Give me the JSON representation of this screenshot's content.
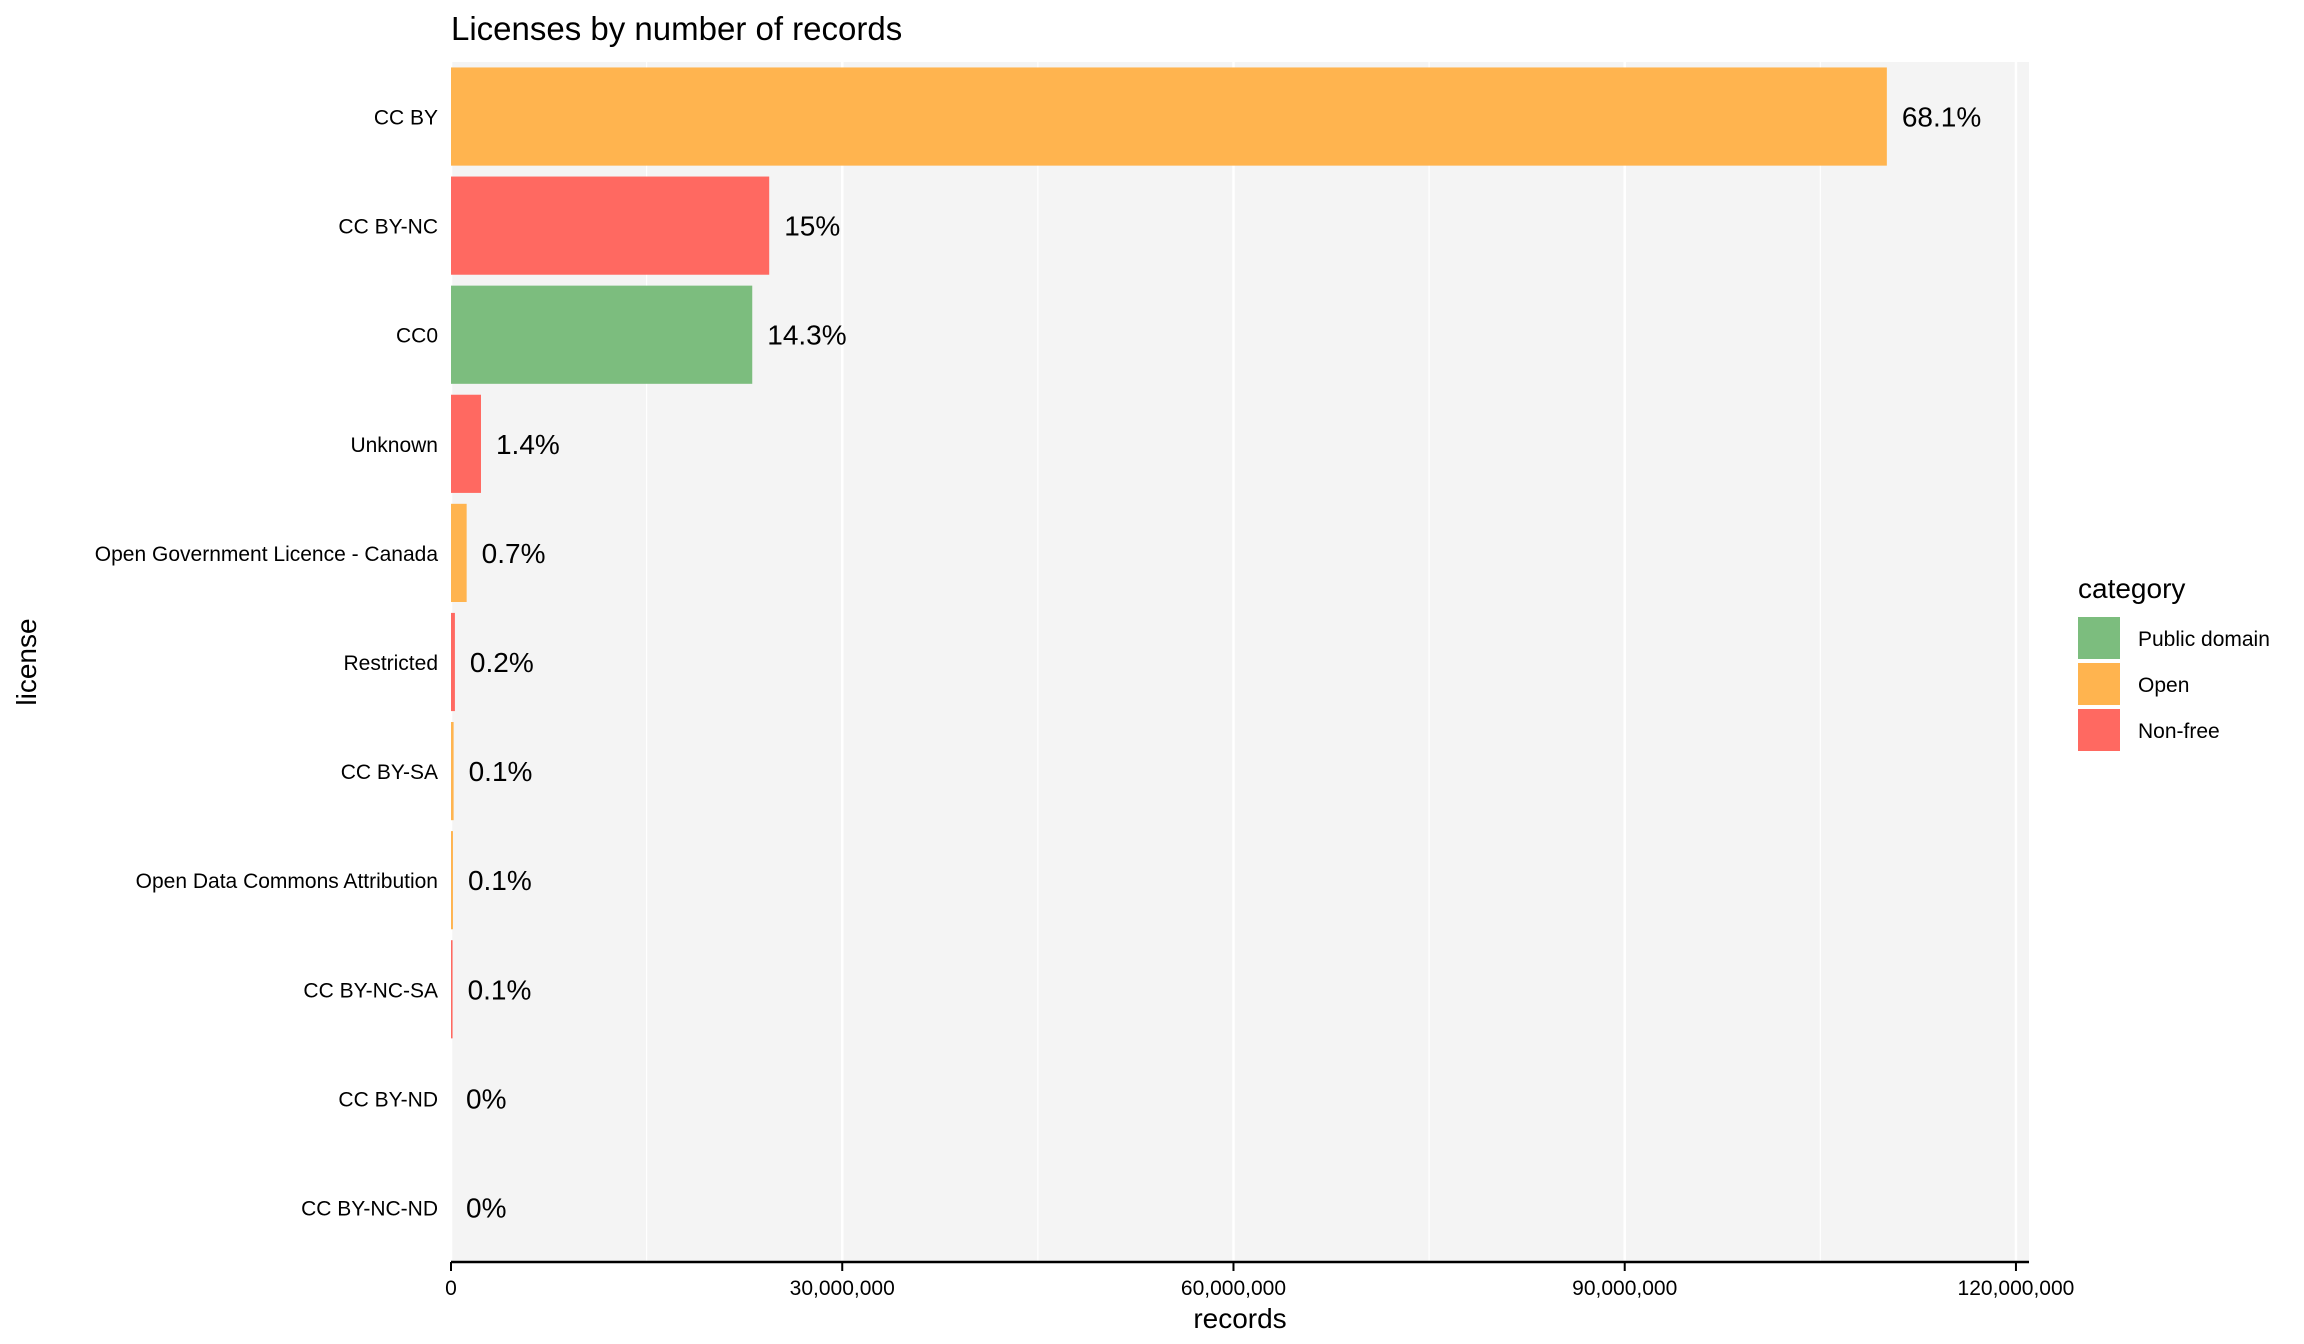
{
  "chart_data": {
    "type": "bar",
    "orientation": "horizontal",
    "title": "Licenses by number of records",
    "xlabel": "records",
    "ylabel": "license",
    "xlim": [
      0,
      121000000
    ],
    "x_ticks": [
      0,
      30000000,
      60000000,
      90000000,
      120000000
    ],
    "x_tick_labels": [
      "0",
      "30,000,000",
      "60,000,000",
      "90,000,000",
      "120,000,000"
    ],
    "grid": true,
    "legend": {
      "title": "category",
      "placement": "right",
      "entries": [
        {
          "name": "Public domain",
          "color": "#7CBD7E"
        },
        {
          "name": "Open",
          "color": "#FFB44F"
        },
        {
          "name": "Non-free",
          "color": "#FF6961"
        }
      ]
    },
    "bars": [
      {
        "license": "CC BY",
        "value": 110100000,
        "label": "68.1%",
        "category": "Open"
      },
      {
        "license": "CC BY-NC",
        "value": 24400000,
        "label": "15%",
        "category": "Non-free"
      },
      {
        "license": "CC0",
        "value": 23100000,
        "label": "14.3%",
        "category": "Public domain"
      },
      {
        "license": "Unknown",
        "value": 2300000,
        "label": "1.4%",
        "category": "Non-free"
      },
      {
        "license": "Open Government Licence - Canada",
        "value": 1200000,
        "label": "0.7%",
        "category": "Open"
      },
      {
        "license": "Restricted",
        "value": 300000,
        "label": "0.2%",
        "category": "Non-free"
      },
      {
        "license": "CC BY-SA",
        "value": 200000,
        "label": "0.1%",
        "category": "Open"
      },
      {
        "license": "Open Data Commons Attribution",
        "value": 150000,
        "label": "0.1%",
        "category": "Open"
      },
      {
        "license": "CC BY-NC-SA",
        "value": 120000,
        "label": "0.1%",
        "category": "Non-free"
      },
      {
        "license": "CC BY-ND",
        "value": 0,
        "label": "0%",
        "category": "Open"
      },
      {
        "license": "CC BY-NC-ND",
        "value": 0,
        "label": "0%",
        "category": "Non-free"
      }
    ]
  }
}
